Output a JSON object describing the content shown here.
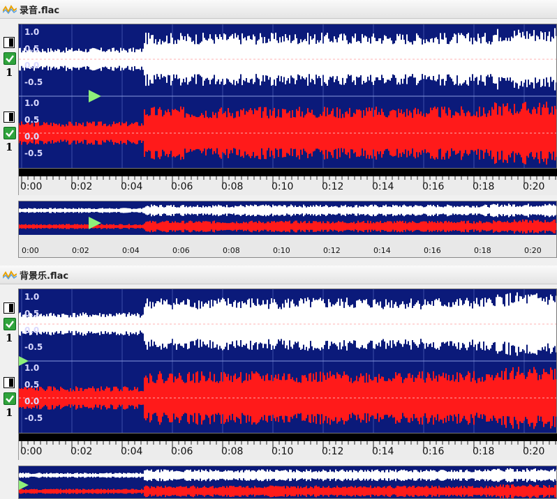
{
  "tracks": [
    {
      "name": "录音.flac",
      "channel_numbers": [
        "1",
        "1"
      ]
    },
    {
      "name": "背景乐.flac",
      "channel_numbers": [
        "1",
        "1"
      ]
    }
  ],
  "amplitude_labels": [
    "1.0",
    "0.5",
    "0.0",
    "-0.5"
  ],
  "ruler_labels": [
    "0:00",
    "0:02",
    "0:04",
    "0:06",
    "0:08",
    "0:10",
    "0:12",
    "0:14",
    "0:16",
    "0:18",
    "0:20"
  ],
  "mini_labels": [
    "0:00",
    "0:02",
    "0:04",
    "0:06",
    "0:08",
    "0:10",
    "0:12",
    "0:14",
    "0:16",
    "0:18",
    "0:20"
  ],
  "colors": {
    "background_wave": "#0b1a7a",
    "channel_1_wave": "#ffffff",
    "channel_2_wave": "#ff1a1a",
    "playhead": "#8ef07a",
    "checkbox": "#2fa33c"
  },
  "icons": {
    "track_icon": "waveform-icon",
    "split_icon": "channel-split-icon",
    "check_icon": "checkbox-checked-icon",
    "playhead_icon": "play-marker-icon"
  }
}
